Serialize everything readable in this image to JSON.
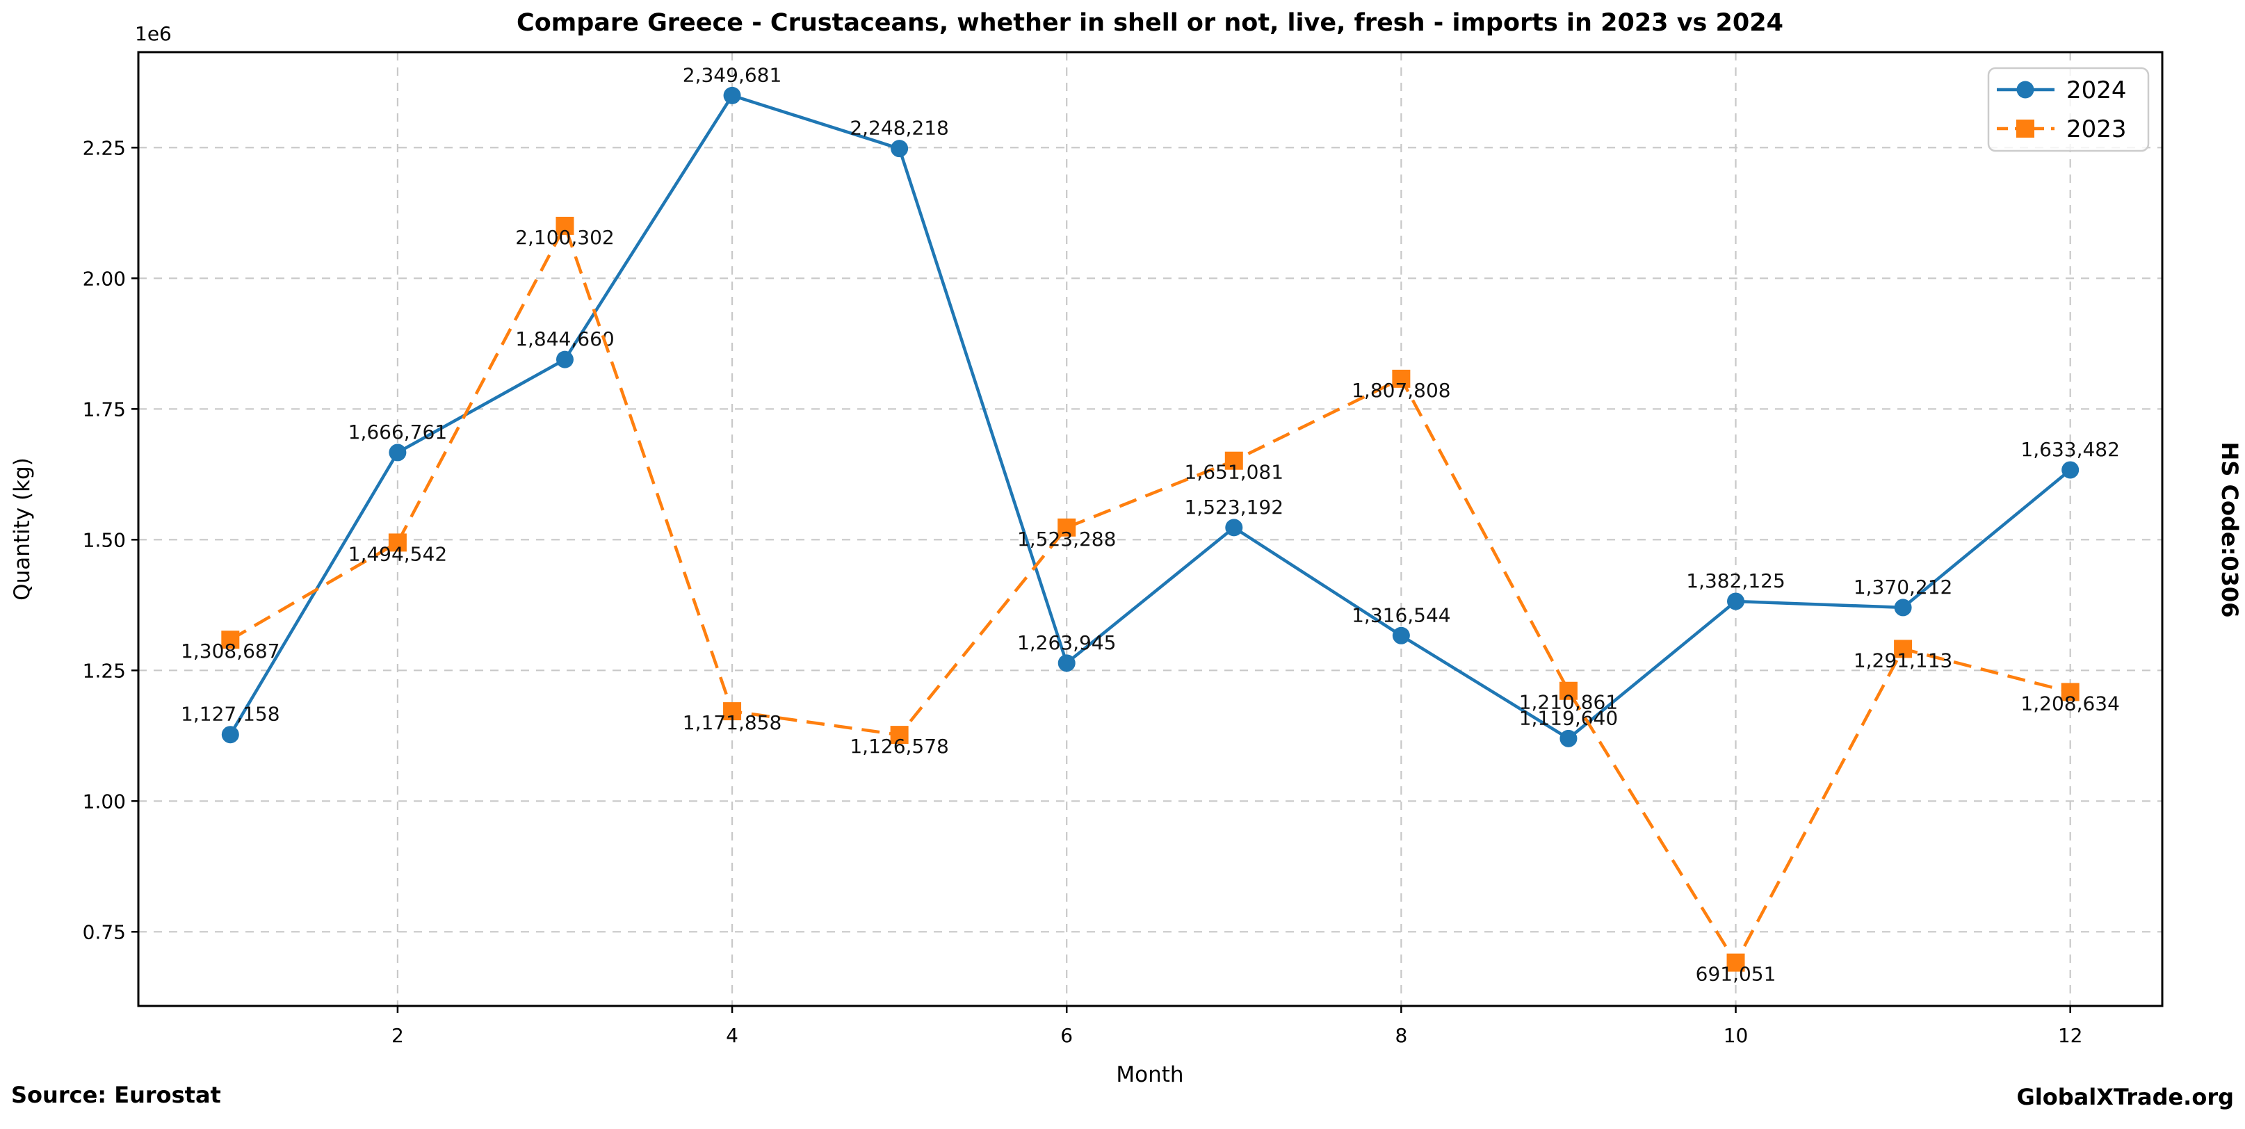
{
  "figure": {
    "title": "Compare Greece - Crustaceans, whether in shell or not, live, fresh - imports in 2023 vs 2024",
    "source": "Source: Eurostat",
    "watermark": "GlobalXTrade.org",
    "right_label": "HS Code:0306"
  },
  "chart_data": {
    "type": "line",
    "title": "Compare Greece - Crustaceans, whether in shell or not, live, fresh - imports in 2023 vs 2024",
    "xlabel": "Month",
    "ylabel": "Quantity (kg)",
    "y_offset_label": "1e6",
    "x": [
      1,
      2,
      3,
      4,
      5,
      6,
      7,
      8,
      9,
      10,
      11,
      12
    ],
    "x_ticks": [
      2,
      4,
      6,
      8,
      10,
      12
    ],
    "y_ticks": [
      750000,
      1000000,
      1250000,
      1500000,
      1750000,
      2000000,
      2250000
    ],
    "y_tick_labels": [
      "0.75",
      "1.00",
      "1.25",
      "1.50",
      "1.75",
      "2.00",
      "2.25"
    ],
    "xlim": [
      0.45,
      12.55
    ],
    "ylim": [
      608120,
      2432613
    ],
    "grid": true,
    "grid_color": "#c8c8c8",
    "axis_color": "#000000",
    "legend": {
      "position": "upper right",
      "entries": [
        "2024",
        "2023"
      ]
    },
    "series": [
      {
        "name": "2024",
        "color": "#1f77b4",
        "line_style": "solid",
        "marker": "circle",
        "label_placement": "above",
        "values": [
          1127158,
          1666761,
          1844660,
          2349681,
          2248218,
          1263945,
          1523192,
          1316544,
          1119640,
          1382125,
          1370212,
          1633482
        ],
        "value_labels": [
          "1,127,158",
          "1,666,761",
          "1,844,660",
          "2,349,681",
          "2,248,218",
          "1,263,945",
          "1,523,192",
          "1,316,544",
          "1,119,640",
          "1,382,125",
          "1,370,212",
          "1,633,482"
        ]
      },
      {
        "name": "2023",
        "color": "#ff7f0e",
        "line_style": "dashed",
        "marker": "square",
        "label_placement": "below",
        "values": [
          1308687,
          1494542,
          2100302,
          1171858,
          1126578,
          1523288,
          1651081,
          1807808,
          1210861,
          691051,
          1291113,
          1208634
        ],
        "value_labels": [
          "1,308,687",
          "1,494,542",
          "2,100,302",
          "1,171,858",
          "1,126,578",
          "1,523,288",
          "1,651,081",
          "1,807,808",
          "1,210,861",
          "691,051",
          "1,291,113",
          "1,208,634"
        ]
      }
    ]
  }
}
